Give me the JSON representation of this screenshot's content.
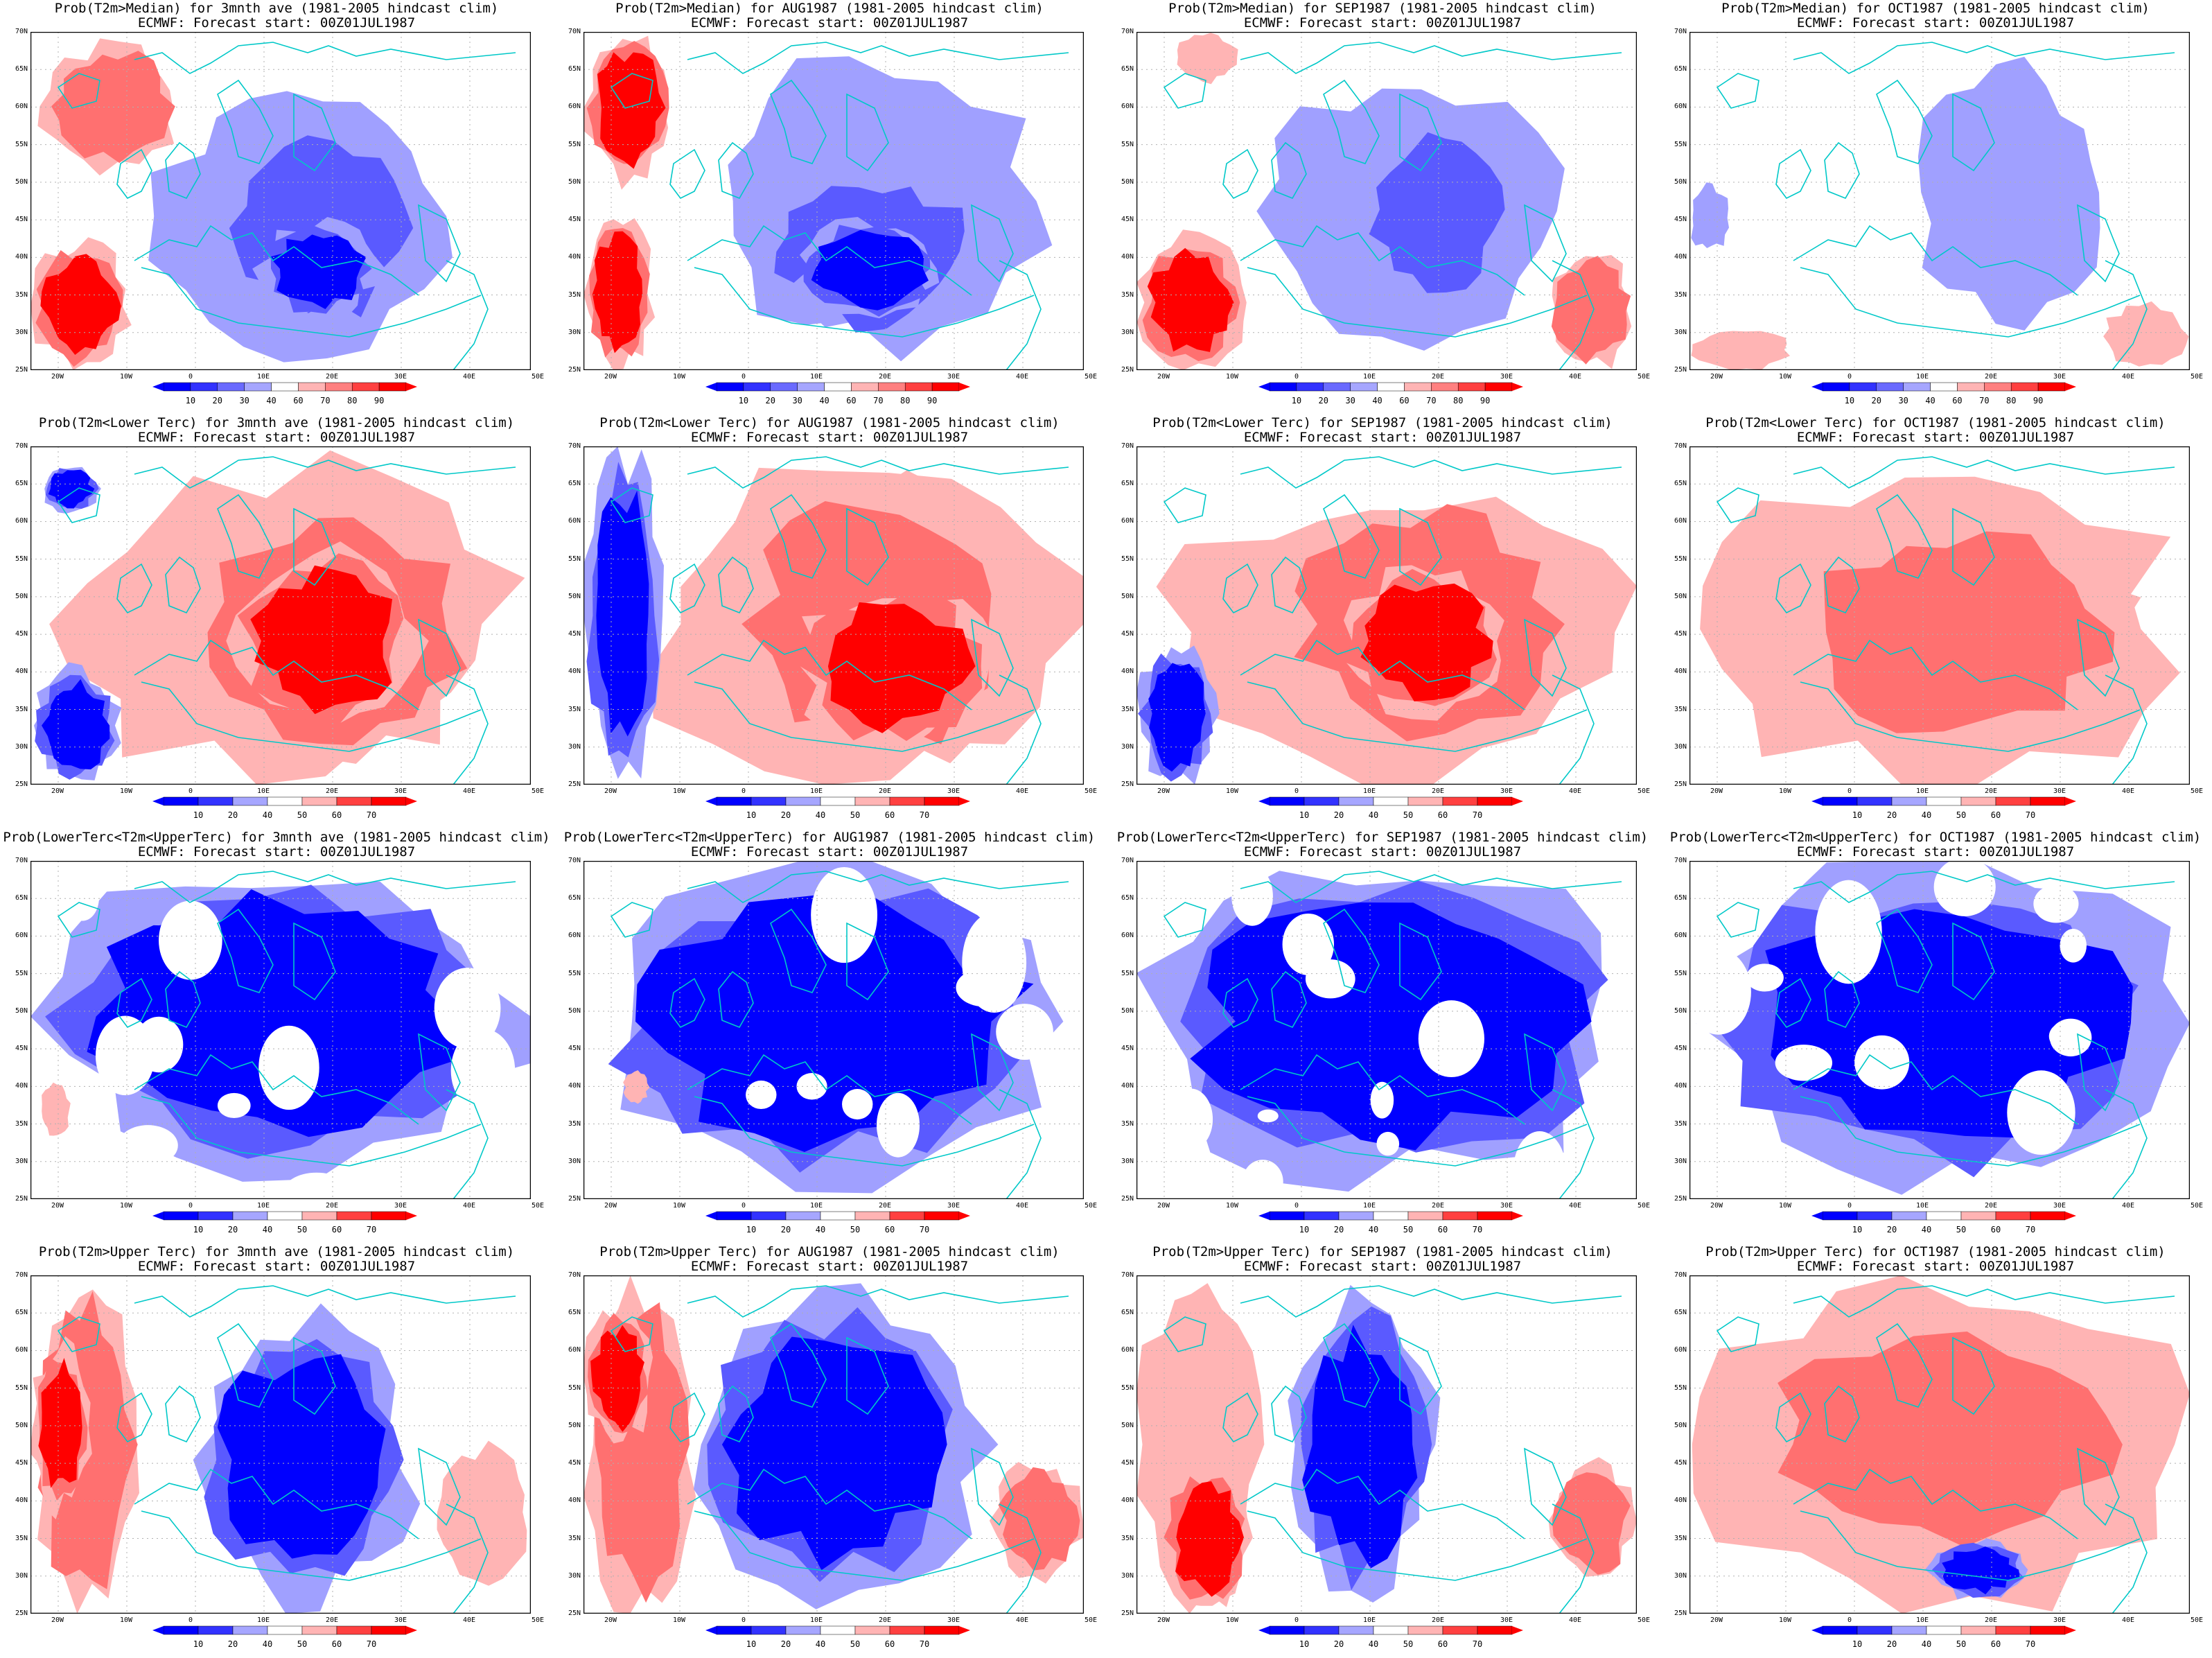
{
  "panels": [
    {
      "title": "Prob(T2m>Median) for 3mnth ave (1981-2005 hindcast clim)",
      "subtitle": "ECMWF: Forecast start: 00Z01JUL1987"
    },
    {
      "title": "Prob(T2m>Median) for AUG1987 (1981-2005 hindcast clim)",
      "subtitle": "ECMWF: Forecast start: 00Z01JUL1987"
    },
    {
      "title": "Prob(T2m>Median) for SEP1987 (1981-2005 hindcast clim)",
      "subtitle": "ECMWF: Forecast start: 00Z01JUL1987"
    },
    {
      "title": "Prob(T2m>Median) for OCT1987 (1981-2005 hindcast clim)",
      "subtitle": "ECMWF: Forecast start: 00Z01JUL1987"
    },
    {
      "title": "Prob(T2m<Lower Terc) for 3mnth ave (1981-2005 hindcast clim)",
      "subtitle": "ECMWF: Forecast start: 00Z01JUL1987"
    },
    {
      "title": "Prob(T2m<Lower Terc) for AUG1987 (1981-2005 hindcast clim)",
      "subtitle": "ECMWF: Forecast start: 00Z01JUL1987"
    },
    {
      "title": "Prob(T2m<Lower Terc) for SEP1987 (1981-2005 hindcast clim)",
      "subtitle": "ECMWF: Forecast start: 00Z01JUL1987"
    },
    {
      "title": "Prob(T2m<Lower Terc) for OCT1987 (1981-2005 hindcast clim)",
      "subtitle": "ECMWF: Forecast start: 00Z01JUL1987"
    },
    {
      "title": "Prob(LowerTerc<T2m<UpperTerc) for 3mnth ave (1981-2005 hindcast clim)",
      "subtitle": "ECMWF: Forecast start: 00Z01JUL1987"
    },
    {
      "title": "Prob(LowerTerc<T2m<UpperTerc) for AUG1987 (1981-2005 hindcast clim)",
      "subtitle": "ECMWF: Forecast start: 00Z01JUL1987"
    },
    {
      "title": "Prob(LowerTerc<T2m<UpperTerc) for SEP1987 (1981-2005 hindcast clim)",
      "subtitle": "ECMWF: Forecast start: 00Z01JUL1987"
    },
    {
      "title": "Prob(LowerTerc<T2m<UpperTerc) for OCT1987 (1981-2005 hindcast clim)",
      "subtitle": "ECMWF: Forecast start: 00Z01JUL1987"
    },
    {
      "title": "Prob(T2m>Upper Terc) for 3mnth ave (1981-2005 hindcast clim)",
      "subtitle": "ECMWF: Forecast start: 00Z01JUL1987"
    },
    {
      "title": "Prob(T2m>Upper Terc) for AUG1987 (1981-2005 hindcast clim)",
      "subtitle": "ECMWF: Forecast start: 00Z01JUL1987"
    },
    {
      "title": "Prob(T2m>Upper Terc) for SEP1987 (1981-2005 hindcast clim)",
      "subtitle": "ECMWF: Forecast start: 00Z01JUL1987"
    },
    {
      "title": "Prob(T2m>Upper Terc) for OCT1987 (1981-2005 hindcast clim)",
      "subtitle": "ECMWF: Forecast start: 00Z01JUL1987"
    }
  ],
  "lat_labels": [
    "70N",
    "65N",
    "60N",
    "55N",
    "50N",
    "45N",
    "40N",
    "35N",
    "30N",
    "25N"
  ],
  "lon_labels": [
    "20W",
    "10W",
    "0",
    "10E",
    "20E",
    "30E",
    "40E",
    "50E"
  ],
  "colorbar_median": [
    "10",
    "20",
    "30",
    "40",
    "60",
    "70",
    "80",
    "90"
  ],
  "colorbar_tercile": [
    "10",
    "20",
    "40",
    "50",
    "60",
    "70"
  ],
  "colors": {
    "blue_dark": "#0000ff",
    "blue_mid": "#5a5aff",
    "blue_light": "#a0a0ff",
    "red_light": "#ffb4b4",
    "red_mid": "#ff7070",
    "red_dark": "#ff0000",
    "coast": "#00c8c8",
    "grid": "#b0b0b0"
  }
}
